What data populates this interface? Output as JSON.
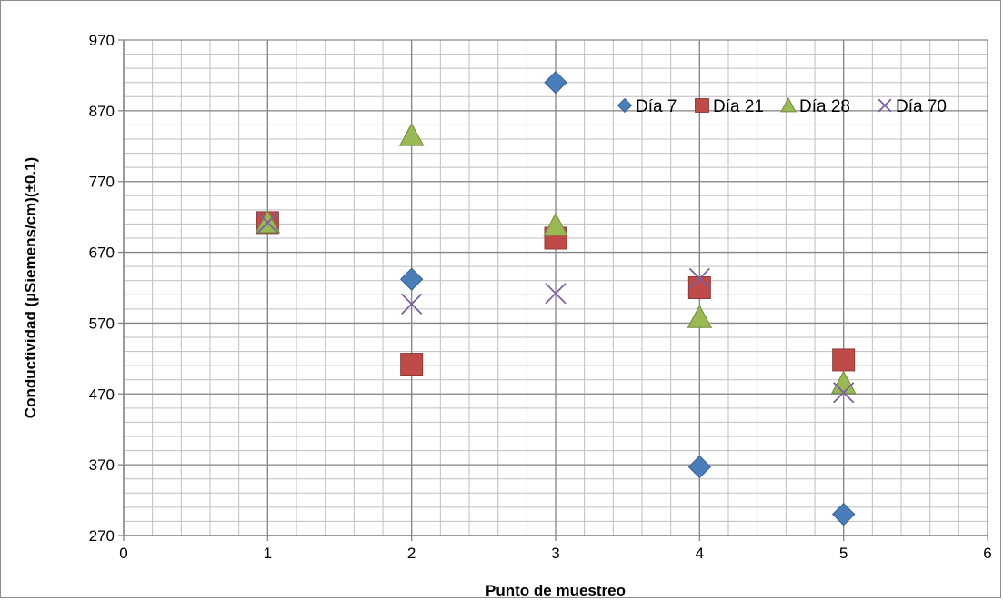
{
  "chart_data": {
    "type": "scatter",
    "xlabel": "Punto de muestreo",
    "ylabel": "Conductividad (µSiemens/cm)(±0.1)",
    "xlim": [
      0,
      6
    ],
    "ylim": [
      270,
      970
    ],
    "xticks": [
      0,
      1,
      2,
      3,
      4,
      5,
      6
    ],
    "yticks": [
      270,
      370,
      470,
      570,
      670,
      770,
      870,
      970
    ],
    "grid": true,
    "legend_position": "top-right",
    "series": [
      {
        "name": "Día 7",
        "marker": "diamond",
        "color": "#4a7ebb",
        "points": [
          [
            1,
            712
          ],
          [
            2,
            632
          ],
          [
            3,
            910
          ],
          [
            4,
            367
          ],
          [
            5,
            300
          ]
        ]
      },
      {
        "name": "Día 21",
        "marker": "square",
        "color": "#be4b48",
        "points": [
          [
            1,
            712
          ],
          [
            2,
            512
          ],
          [
            3,
            690
          ],
          [
            4,
            620
          ],
          [
            5,
            518
          ]
        ]
      },
      {
        "name": "Día 28",
        "marker": "triangle",
        "color": "#98b954",
        "points": [
          [
            1,
            712
          ],
          [
            2,
            835
          ],
          [
            3,
            708
          ],
          [
            4,
            578
          ],
          [
            5,
            485
          ]
        ]
      },
      {
        "name": "Día 70",
        "marker": "x",
        "color": "#7d60a0",
        "points": [
          [
            1,
            712
          ],
          [
            2,
            597
          ],
          [
            3,
            612
          ],
          [
            4,
            633
          ],
          [
            5,
            472
          ]
        ]
      }
    ]
  }
}
